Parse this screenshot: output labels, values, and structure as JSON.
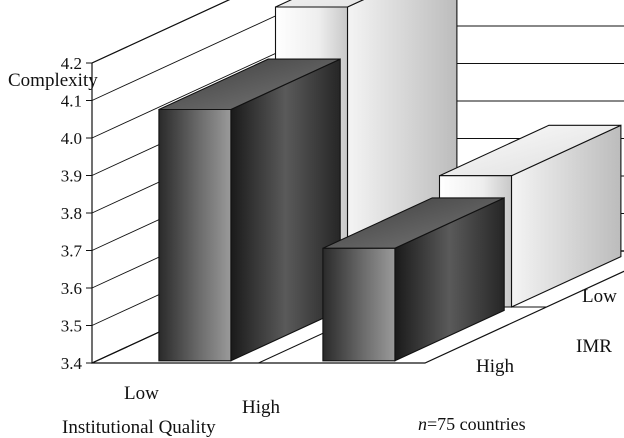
{
  "chart_data": {
    "type": "bar",
    "title": "",
    "ylabel": "Complexity",
    "xlabel": "Institutional Quality",
    "zlabel": "IMR",
    "ylim": [
      3.4,
      4.2
    ],
    "yticks": [
      "3.4",
      "3.5",
      "3.6",
      "3.7",
      "3.8",
      "3.9",
      "4.0",
      "4.1",
      "4.2"
    ],
    "x_categories": [
      "Low",
      "High"
    ],
    "z_categories": [
      "High",
      "Low"
    ],
    "grid": true,
    "bars": [
      {
        "institutional_quality": "Low",
        "imr": "High",
        "value": 4.07,
        "shade": "dark"
      },
      {
        "institutional_quality": "Low",
        "imr": "Low",
        "value": 4.2,
        "shade": "light"
      },
      {
        "institutional_quality": "High",
        "imr": "High",
        "value": 3.7,
        "shade": "dark"
      },
      {
        "institutional_quality": "High",
        "imr": "Low",
        "value": 3.75,
        "shade": "light"
      }
    ],
    "note": "n=75 countries",
    "colors": {
      "dark": "#3a3a3a",
      "light": "#e6e6e6"
    }
  }
}
